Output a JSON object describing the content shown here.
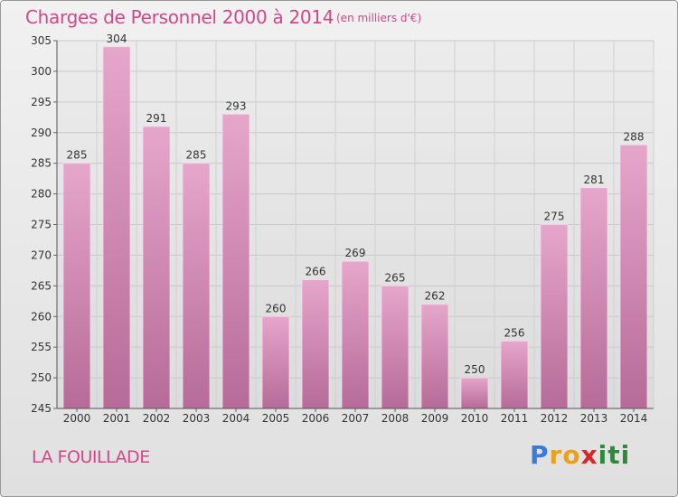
{
  "header": {
    "title": "Charges de Personnel 2000 à 2014",
    "subtitle": "(en milliers d'€)"
  },
  "footer": {
    "place": "LA FOUILLADE",
    "logo": {
      "letters": [
        "P",
        "r",
        "o",
        "x",
        "i",
        "t",
        "i"
      ],
      "colors": [
        "#3a7bd5",
        "#e8a21b",
        "#e8a21b",
        "#d62828",
        "#2d8a3a",
        "#2d8a3a",
        "#2d8a3a"
      ]
    }
  },
  "chart_data": {
    "type": "bar",
    "categories": [
      "2000",
      "2001",
      "2002",
      "2003",
      "2004",
      "2005",
      "2006",
      "2007",
      "2008",
      "2009",
      "2010",
      "2011",
      "2012",
      "2013",
      "2014"
    ],
    "values": [
      285,
      304,
      291,
      285,
      293,
      260,
      266,
      269,
      265,
      262,
      250,
      256,
      275,
      281,
      288
    ],
    "ylim": [
      245,
      305
    ],
    "yticks": [
      245,
      250,
      255,
      260,
      265,
      270,
      275,
      280,
      285,
      290,
      295,
      300,
      305
    ],
    "grid": true,
    "bar_color_top": "#e6a6cb",
    "bar_color_bottom": "#b66b98"
  }
}
